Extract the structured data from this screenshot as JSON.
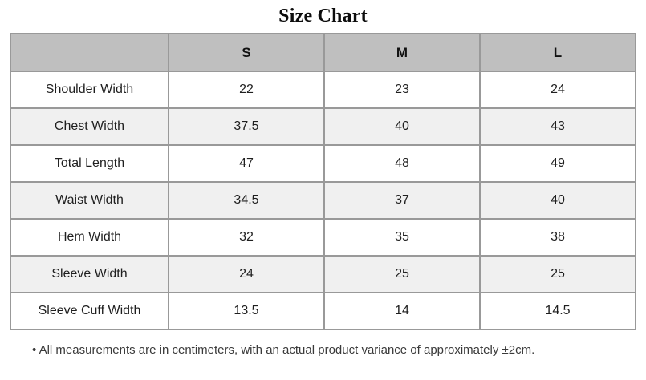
{
  "chart_data": {
    "type": "table",
    "title": "Size Chart",
    "columns": [
      "",
      "S",
      "M",
      "L"
    ],
    "rows": [
      {
        "label": "Shoulder Width",
        "values": [
          "22",
          "23",
          "24"
        ]
      },
      {
        "label": "Chest Width",
        "values": [
          "37.5",
          "40",
          "43"
        ]
      },
      {
        "label": "Total Length",
        "values": [
          "47",
          "48",
          "49"
        ]
      },
      {
        "label": "Waist Width",
        "values": [
          "34.5",
          "37",
          "40"
        ]
      },
      {
        "label": "Hem Width",
        "values": [
          "32",
          "35",
          "38"
        ]
      },
      {
        "label": "Sleeve Width",
        "values": [
          "24",
          "25",
          "25"
        ]
      },
      {
        "label": "Sleeve Cuff Width",
        "values": [
          "13.5",
          "14",
          "14.5"
        ]
      }
    ]
  },
  "footnote": "• All measurements are in centimeters, with an actual product variance of approximately ±2cm.",
  "colors": {
    "header_bg": "#bfbfbf",
    "alt_row_bg": "#f0f0f0",
    "border": "#999999",
    "text": "#1f1f1f",
    "note_text": "#3a3a3a"
  }
}
